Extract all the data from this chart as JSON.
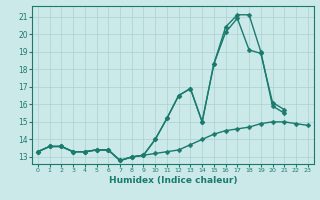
{
  "xlabel": "Humidex (Indice chaleur)",
  "xlim": [
    -0.5,
    23.5
  ],
  "ylim": [
    12.6,
    21.6
  ],
  "yticks": [
    13,
    14,
    15,
    16,
    17,
    18,
    19,
    20,
    21
  ],
  "xticks": [
    0,
    1,
    2,
    3,
    4,
    5,
    6,
    7,
    8,
    9,
    10,
    11,
    12,
    13,
    14,
    15,
    16,
    17,
    18,
    19,
    20,
    21,
    22,
    23
  ],
  "bg_color": "#cce9e9",
  "grid_color": "#aad0d0",
  "line_color": "#1a7a6e",
  "lines": [
    {
      "x": [
        0,
        1,
        2,
        3,
        4,
        5,
        6,
        7,
        8,
        9,
        10,
        11,
        12,
        13,
        14,
        15,
        16,
        17,
        18,
        19,
        20,
        21,
        22,
        23
      ],
      "y": [
        13.3,
        13.6,
        13.6,
        13.3,
        13.3,
        13.4,
        13.4,
        12.8,
        13.0,
        13.1,
        13.2,
        13.3,
        13.4,
        13.7,
        14.0,
        14.3,
        14.5,
        14.6,
        14.7,
        14.9,
        15.0,
        15.0,
        14.9,
        14.8
      ]
    },
    {
      "x": [
        0,
        1,
        2,
        3,
        4,
        5,
        6,
        7,
        8,
        9,
        10,
        11,
        12,
        13,
        14,
        15,
        16,
        17,
        18,
        19,
        20,
        21
      ],
      "y": [
        13.3,
        13.6,
        13.6,
        13.3,
        13.3,
        13.4,
        13.4,
        12.8,
        13.0,
        13.1,
        14.0,
        15.2,
        16.5,
        16.9,
        15.0,
        18.3,
        20.1,
        20.9,
        19.1,
        18.9,
        16.1,
        15.7
      ]
    },
    {
      "x": [
        0,
        1,
        2,
        3,
        4,
        5,
        6,
        7,
        8,
        9,
        10,
        11,
        12,
        13,
        14,
        15,
        16,
        17,
        18,
        19,
        20,
        21
      ],
      "y": [
        13.3,
        13.6,
        13.6,
        13.3,
        13.3,
        13.4,
        13.4,
        12.8,
        13.0,
        13.1,
        14.0,
        15.2,
        16.5,
        16.9,
        15.0,
        18.3,
        20.4,
        21.1,
        21.1,
        19.0,
        15.9,
        15.5
      ]
    }
  ],
  "marker_size": 2.5,
  "line_width": 1.0
}
